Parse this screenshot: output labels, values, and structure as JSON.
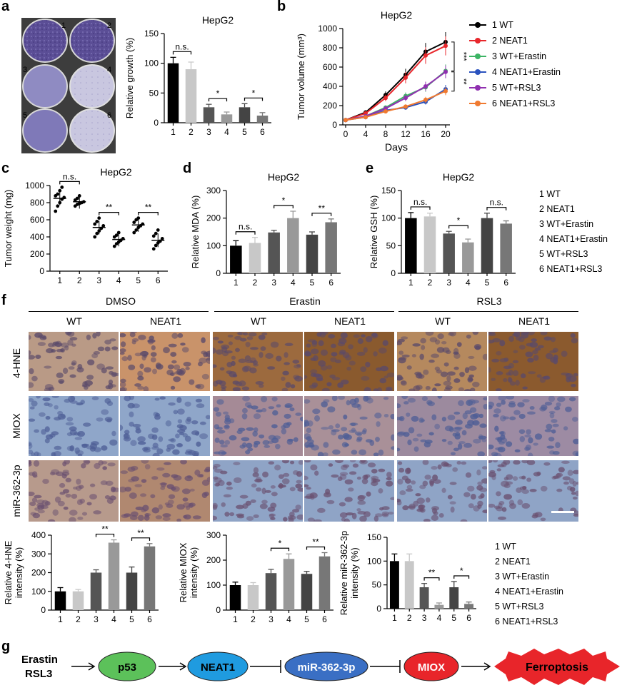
{
  "panel_labels": {
    "a": "a",
    "b": "b",
    "c": "c",
    "d": "d",
    "e": "e",
    "f": "f",
    "g": "g"
  },
  "colony_numbers": [
    "1",
    "2",
    "3",
    "4",
    "5",
    "6"
  ],
  "colony_colors": {
    "dense": "#5b4e96",
    "light": "#c9c7e0",
    "bg": "#3d3d3d"
  },
  "legend_b": [
    {
      "label": "1 WT",
      "color": "#000000",
      "marker": "circle"
    },
    {
      "label": "2 NEAT1",
      "color": "#e8272c",
      "marker": "square"
    },
    {
      "label": "3 WT+Erastin",
      "color": "#3cb464",
      "marker": "triangle-up"
    },
    {
      "label": "4 NEAT1+Erastin",
      "color": "#2a52be",
      "marker": "diamond"
    },
    {
      "label": "5 WT+RSL3",
      "color": "#9030b0",
      "marker": "circle"
    },
    {
      "label": "6 NEAT1+RSL3",
      "color": "#f07a30",
      "marker": "triangle-down"
    }
  ],
  "legend_groups": [
    "1 WT",
    "2 NEAT1",
    "3 WT+Erastin",
    "4 NEAT1+Erastin",
    "5 WT+RSL3",
    "6 NEAT1+RSL3"
  ],
  "bar_colors": [
    "#000000",
    "#c8c8c8",
    "#555555",
    "#999999",
    "#444444",
    "#777777"
  ],
  "ihc": {
    "groups": [
      "DMSO",
      "Erastin",
      "RSL3"
    ],
    "columns": [
      "WT",
      "NEAT1",
      "WT",
      "NEAT1",
      "WT",
      "NEAT1"
    ],
    "rows": [
      "4-HNE",
      "MIOX",
      "miR-362-3p"
    ]
  },
  "pathway": {
    "inducers": [
      "Erastin",
      "RSL3"
    ],
    "nodes": [
      "p53",
      "NEAT1",
      "miR-362-3p",
      "MIOX",
      "Ferroptosis"
    ],
    "colors": {
      "p53": "#5cc15a",
      "NEAT1": "#1f9be0",
      "miR": "#3a6fc4",
      "MIOX": "#e8252a",
      "Ferro": "#e8252a"
    }
  },
  "chart_data": [
    {
      "id": "a",
      "type": "bar",
      "title": "HepG2",
      "ylabel": "Relative growth (%)",
      "categories": [
        "1",
        "2",
        "3",
        "4",
        "5",
        "6"
      ],
      "values": [
        100,
        90,
        26,
        14,
        26,
        12
      ],
      "errors": [
        10,
        12,
        5,
        4,
        6,
        5
      ],
      "ylim": [
        0,
        150
      ],
      "yticks": [
        0,
        50,
        100,
        150
      ],
      "annotations": [
        {
          "pair": [
            1,
            2
          ],
          "text": "n.s."
        },
        {
          "pair": [
            3,
            4
          ],
          "text": "*"
        },
        {
          "pair": [
            5,
            6
          ],
          "text": "*"
        }
      ]
    },
    {
      "id": "b",
      "type": "line",
      "title": "HepG2",
      "xlabel": "Days",
      "ylabel": "Tumor volume (mm³)",
      "x": [
        0,
        4,
        8,
        12,
        16,
        20
      ],
      "ylim": [
        0,
        1000
      ],
      "yticks": [
        0,
        200,
        400,
        600,
        800,
        1000
      ],
      "series": [
        {
          "name": "1 WT",
          "values": [
            50,
            130,
            310,
            520,
            760,
            860
          ]
        },
        {
          "name": "2 NEAT1",
          "values": [
            50,
            120,
            280,
            490,
            720,
            820
          ]
        },
        {
          "name": "3 WT+Erastin",
          "values": [
            50,
            90,
            180,
            300,
            390,
            560
          ]
        },
        {
          "name": "4 NEAT1+Erastin",
          "values": [
            50,
            80,
            150,
            180,
            240,
            370
          ]
        },
        {
          "name": "5 WT+RSL3",
          "values": [
            50,
            90,
            170,
            280,
            400,
            550
          ]
        },
        {
          "name": "6 NEAT1+RSL3",
          "values": [
            50,
            80,
            140,
            190,
            260,
            350
          ]
        }
      ],
      "annotations": [
        {
          "text": "***"
        },
        {
          "text": "**"
        }
      ]
    },
    {
      "id": "c",
      "type": "scatter",
      "title": "HepG2",
      "ylabel": "Tumor weight (mg)",
      "categories": [
        "1",
        "2",
        "3",
        "4",
        "5",
        "6"
      ],
      "means": [
        850,
        810,
        510,
        370,
        540,
        360
      ],
      "points": [
        [
          700,
          760,
          800,
          840,
          860,
          880,
          900,
          940,
          980
        ],
        [
          760,
          780,
          790,
          800,
          810,
          830,
          850,
          880
        ],
        [
          400,
          440,
          470,
          500,
          530,
          550,
          580,
          620
        ],
        [
          290,
          320,
          340,
          360,
          380,
          400,
          420,
          450
        ],
        [
          450,
          480,
          510,
          530,
          550,
          570,
          600,
          620
        ],
        [
          260,
          300,
          330,
          350,
          380,
          410,
          440,
          480
        ]
      ],
      "ylim": [
        0,
        1000
      ],
      "yticks": [
        0,
        200,
        400,
        600,
        800,
        1000
      ],
      "annotations": [
        {
          "pair": [
            1,
            2
          ],
          "text": "n.s."
        },
        {
          "pair": [
            3,
            4
          ],
          "text": "**"
        },
        {
          "pair": [
            5,
            6
          ],
          "text": "**"
        }
      ]
    },
    {
      "id": "d",
      "type": "bar",
      "title": "HepG2",
      "ylabel": "Relative MDA (%)",
      "categories": [
        "1",
        "2",
        "3",
        "4",
        "5",
        "6"
      ],
      "values": [
        100,
        110,
        148,
        200,
        140,
        185
      ],
      "errors": [
        18,
        20,
        8,
        25,
        10,
        12
      ],
      "ylim": [
        0,
        300
      ],
      "yticks": [
        0,
        100,
        200,
        300
      ],
      "annotations": [
        {
          "pair": [
            1,
            2
          ],
          "text": "n.s."
        },
        {
          "pair": [
            3,
            4
          ],
          "text": "*"
        },
        {
          "pair": [
            5,
            6
          ],
          "text": "**"
        }
      ]
    },
    {
      "id": "e",
      "type": "bar",
      "title": "HepG2",
      "ylabel": "Relative GSH (%)",
      "categories": [
        "1",
        "2",
        "3",
        "4",
        "5",
        "6"
      ],
      "values": [
        100,
        103,
        72,
        56,
        100,
        90
      ],
      "errors": [
        10,
        6,
        4,
        6,
        9,
        5
      ],
      "ylim": [
        0,
        150
      ],
      "yticks": [
        0,
        50,
        100,
        150
      ],
      "annotations": [
        {
          "pair": [
            1,
            2
          ],
          "text": "n.s."
        },
        {
          "pair": [
            3,
            4
          ],
          "text": "*"
        },
        {
          "pair": [
            5,
            6
          ],
          "text": "n.s."
        }
      ]
    },
    {
      "id": "f1",
      "type": "bar",
      "ylabel": "Relative 4-HNE intensity (%)",
      "categories": [
        "1",
        "2",
        "3",
        "4",
        "5",
        "6"
      ],
      "values": [
        100,
        100,
        200,
        360,
        200,
        340
      ],
      "errors": [
        20,
        10,
        15,
        15,
        30,
        15
      ],
      "ylim": [
        0,
        400
      ],
      "yticks": [
        0,
        100,
        200,
        300,
        400
      ],
      "annotations": [
        {
          "pair": [
            3,
            4
          ],
          "text": "**"
        },
        {
          "pair": [
            5,
            6
          ],
          "text": "**"
        }
      ]
    },
    {
      "id": "f2",
      "type": "bar",
      "ylabel": "Relative MIOX intensity (%)",
      "categories": [
        "1",
        "2",
        "3",
        "4",
        "5",
        "6"
      ],
      "values": [
        100,
        100,
        148,
        205,
        145,
        215
      ],
      "errors": [
        12,
        10,
        15,
        20,
        10,
        15
      ],
      "ylim": [
        0,
        300
      ],
      "yticks": [
        0,
        100,
        200,
        300
      ],
      "annotations": [
        {
          "pair": [
            3,
            4
          ],
          "text": "*"
        },
        {
          "pair": [
            5,
            6
          ],
          "text": "**"
        }
      ]
    },
    {
      "id": "f3",
      "type": "bar",
      "ylabel": "Relative miR-362-3p intensity (%)",
      "categories": [
        "1",
        "2",
        "3",
        "4",
        "5",
        "6"
      ],
      "values": [
        100,
        100,
        45,
        8,
        45,
        10
      ],
      "errors": [
        15,
        15,
        8,
        4,
        12,
        4
      ],
      "ylim": [
        0,
        150
      ],
      "yticks": [
        0,
        50,
        100,
        150
      ],
      "annotations": [
        {
          "pair": [
            3,
            4
          ],
          "text": "**"
        },
        {
          "pair": [
            5,
            6
          ],
          "text": "*"
        }
      ]
    }
  ]
}
